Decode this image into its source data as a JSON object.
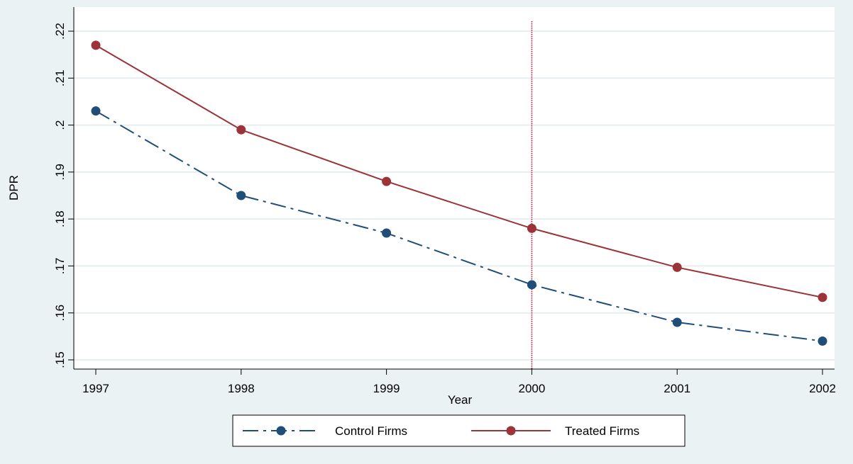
{
  "chart_data": {
    "type": "line",
    "title": "",
    "xlabel": "Year",
    "ylabel": "DPR",
    "x": [
      1997,
      1998,
      1999,
      2000,
      2001,
      2002
    ],
    "xlim": [
      1997,
      2002
    ],
    "ylim": [
      0.15,
      0.22
    ],
    "x_ticks": [
      "1997",
      "1998",
      "1999",
      "2000",
      "2001",
      "2002"
    ],
    "y_ticks": [
      {
        "value": 0.15,
        "label": ".15"
      },
      {
        "value": 0.16,
        "label": ".16"
      },
      {
        "value": 0.17,
        "label": ".17"
      },
      {
        "value": 0.18,
        "label": ".18"
      },
      {
        "value": 0.19,
        "label": ".19"
      },
      {
        "value": 0.2,
        "label": ".2"
      },
      {
        "value": 0.21,
        "label": ".21"
      },
      {
        "value": 0.22,
        "label": ".22"
      }
    ],
    "grid": true,
    "reference_line": {
      "x": 2000,
      "style": "dotted",
      "color": "#c8102e"
    },
    "legend_position": "bottom",
    "series": [
      {
        "name": "Control Firms",
        "values": [
          0.203,
          0.185,
          0.177,
          0.166,
          0.158,
          0.154
        ],
        "color": "#1f4e79",
        "line_style": "dash-dot",
        "marker": "circle"
      },
      {
        "name": "Treated Firms",
        "values": [
          0.217,
          0.199,
          0.188,
          0.178,
          0.1697,
          0.1633
        ],
        "color": "#9b3339",
        "line_style": "solid",
        "marker": "circle"
      }
    ]
  },
  "colors": {
    "outer_background": "#eaf2f3",
    "plot_background": "#ffffff",
    "grid": "#e6eef0"
  }
}
